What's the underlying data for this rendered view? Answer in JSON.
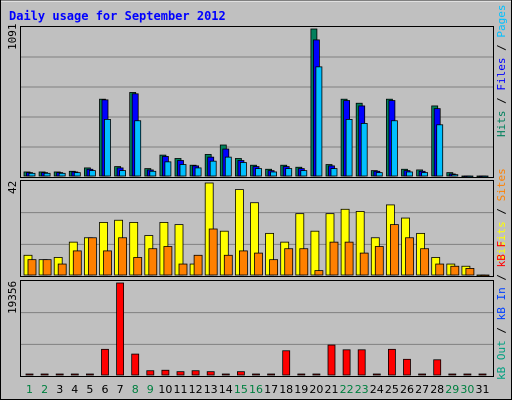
{
  "title": "Daily usage for September 2012",
  "colors": {
    "hits": "#00805c",
    "files": "#0000ff",
    "pages": "#00c0ff",
    "visits": "#ffff00",
    "sites": "#ff8000",
    "kb_in": "#0040ff",
    "kb_out": "#00a080",
    "kb_f": "#ff0000",
    "title": "#0000ff",
    "frame_bg": "#c0c0c0",
    "plot_bg": "#c0c0c0",
    "weekday_label": "#000000",
    "weekend_label": "#008040"
  },
  "legends": {
    "top": [
      {
        "text": "Hits",
        "color": "#00805c"
      },
      {
        "text": "/",
        "color": "#000000"
      },
      {
        "text": "Files",
        "color": "#0000ff"
      },
      {
        "text": "/",
        "color": "#000000"
      },
      {
        "text": "Pages",
        "color": "#00c0ff"
      }
    ],
    "mid": [
      {
        "text": "Visits",
        "color": "#ffff00"
      },
      {
        "text": "/",
        "color": "#000000"
      },
      {
        "text": "Sites",
        "color": "#ff8000"
      }
    ],
    "bot": [
      {
        "text": "kB Out",
        "color": "#00a080"
      },
      {
        "text": "/",
        "color": "#000000"
      },
      {
        "text": "kB In",
        "color": "#0040ff"
      },
      {
        "text": "/",
        "color": "#000000"
      },
      {
        "text": "kB F",
        "color": "#ff0000"
      }
    ]
  },
  "chart_data": {
    "type": "bar",
    "title": "Daily usage for September 2012",
    "categories": [
      "1",
      "2",
      "3",
      "4",
      "5",
      "6",
      "7",
      "8",
      "9",
      "10",
      "11",
      "12",
      "13",
      "14",
      "15",
      "16",
      "17",
      "18",
      "19",
      "20",
      "21",
      "22",
      "23",
      "24",
      "25",
      "26",
      "27",
      "28",
      "29",
      "30",
      "31"
    ],
    "weekend_days": [
      "1",
      "2",
      "8",
      "9",
      "15",
      "16",
      "22",
      "23",
      "29",
      "30"
    ],
    "panels": [
      {
        "name": "top",
        "ymax_label": "1091",
        "ylim": [
          0,
          1091
        ],
        "series": [
          {
            "name": "Hits",
            "values": [
              30,
              30,
              30,
              35,
              60,
              570,
              70,
              620,
              55,
              155,
              130,
              80,
              160,
              230,
              130,
              80,
              50,
              80,
              65,
              1091,
              85,
              570,
              540,
              40,
              570,
              50,
              45,
              520,
              25,
              0,
              0
            ]
          },
          {
            "name": "Files",
            "values": [
              25,
              25,
              25,
              30,
              50,
              565,
              60,
              610,
              45,
              145,
              115,
              75,
              140,
              200,
              115,
              70,
              40,
              70,
              55,
              1010,
              75,
              560,
              520,
              35,
              560,
              40,
              35,
              500,
              15,
              0,
              0
            ]
          },
          {
            "name": "Pages",
            "values": [
              20,
              20,
              20,
              25,
              40,
              420,
              40,
              410,
              35,
              105,
              85,
              60,
              110,
              140,
              100,
              55,
              30,
              55,
              40,
              810,
              55,
              420,
              390,
              25,
              410,
              30,
              25,
              380,
              10,
              0,
              0
            ]
          }
        ]
      },
      {
        "name": "mid",
        "ymax_label": "42",
        "ylim": [
          0,
          42
        ],
        "series": [
          {
            "name": "Visits",
            "values": [
              9,
              7,
              8,
              15,
              17,
              24,
              25,
              24,
              18,
              24,
              23,
              5,
              42,
              20,
              39,
              33,
              19,
              15,
              28,
              20,
              28,
              30,
              29,
              17,
              32,
              26,
              19,
              8,
              5,
              4,
              0
            ]
          },
          {
            "name": "Sites",
            "values": [
              7,
              7,
              5,
              11,
              17,
              11,
              17,
              8,
              12,
              13,
              5,
              9,
              21,
              9,
              11,
              10,
              7,
              12,
              12,
              2,
              15,
              15,
              10,
              13,
              23,
              17,
              12,
              5,
              4,
              3,
              0
            ]
          }
        ]
      },
      {
        "name": "bot",
        "ymax_label": "19356",
        "ylim": [
          0,
          19356
        ],
        "series": [
          {
            "name": "kB F",
            "values": [
              0,
              0,
              0,
              0,
              0,
              5400,
              19356,
              4400,
              900,
              1000,
              700,
              900,
              700,
              0,
              700,
              0,
              0,
              5100,
              0,
              0,
              6300,
              5300,
              5300,
              0,
              5400,
              3300,
              0,
              3200,
              0,
              0,
              0
            ]
          }
        ]
      }
    ]
  }
}
